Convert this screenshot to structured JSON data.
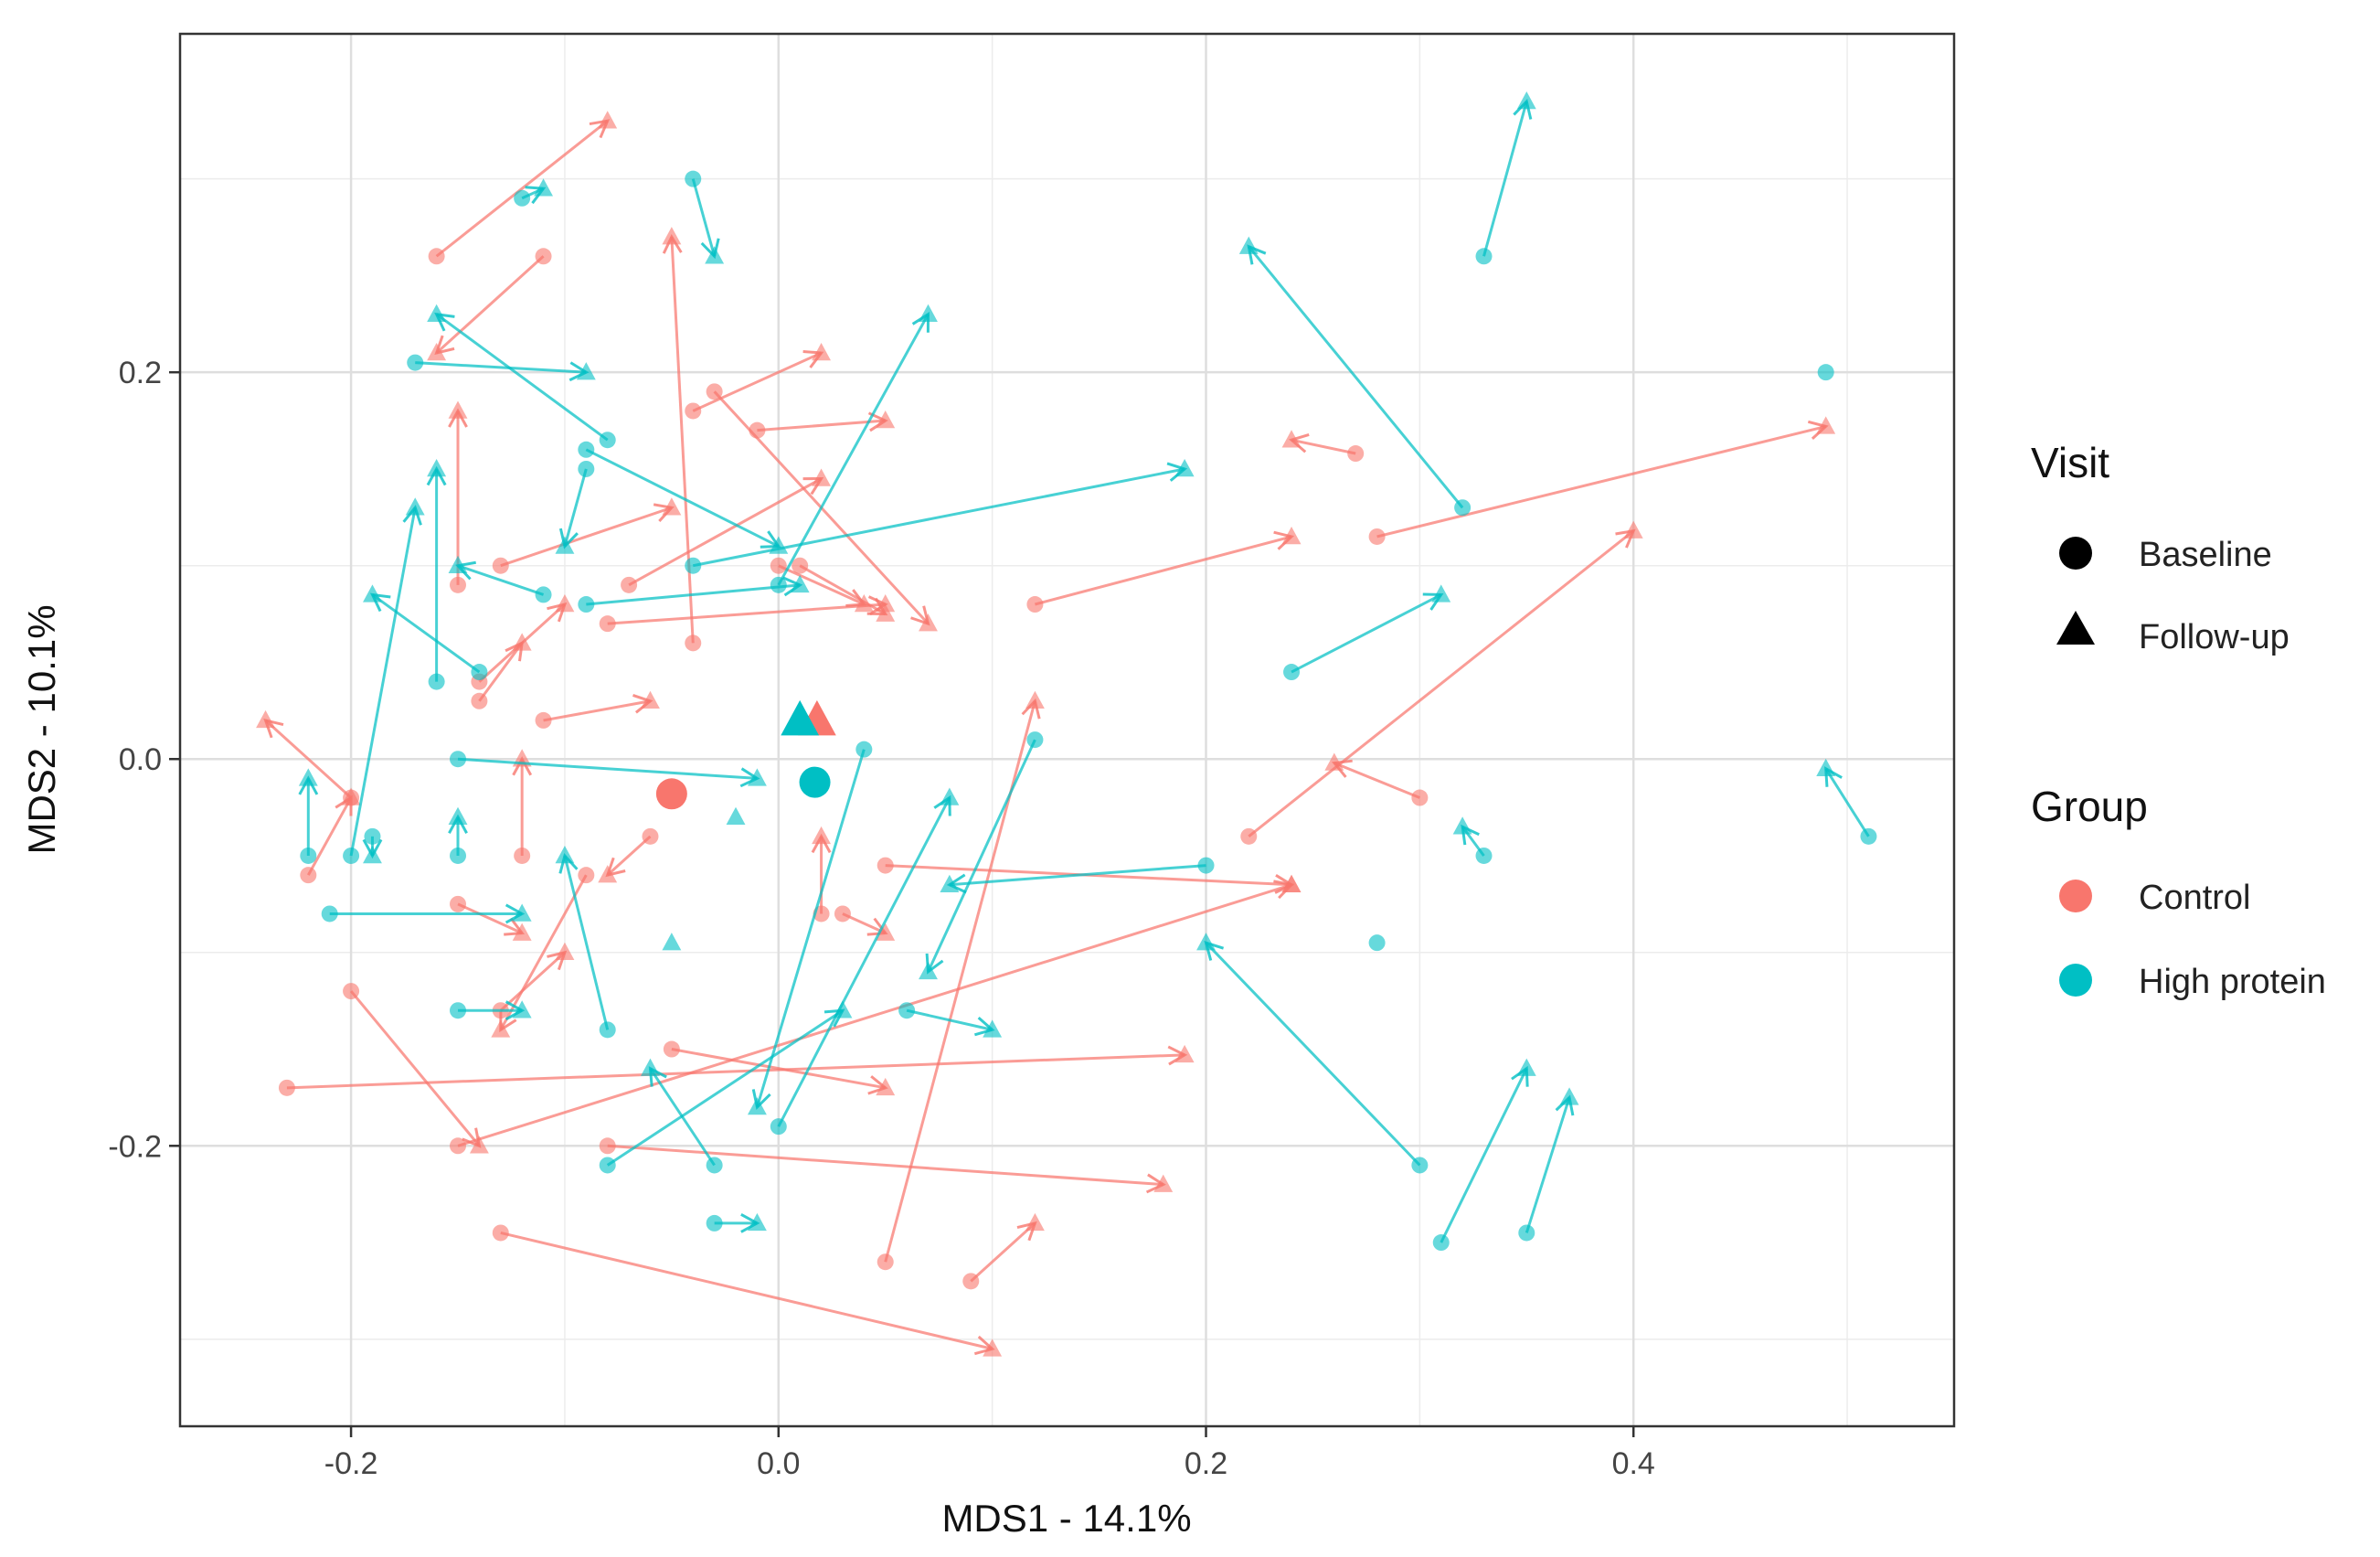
{
  "chart_data": {
    "type": "scatter",
    "xlabel": "MDS1 - 14.1%",
    "ylabel": "MDS2 - 10.1%",
    "xlim": [
      -0.28,
      0.55
    ],
    "ylim": [
      -0.345,
      0.375
    ],
    "x_ticks": [
      -0.2,
      0.0,
      0.2,
      0.4
    ],
    "x_tick_labels": [
      "-0.2",
      "0.0",
      "0.2",
      "0.4"
    ],
    "y_ticks": [
      -0.2,
      0.0,
      0.2
    ],
    "y_tick_labels": [
      "-0.2",
      "0.0",
      "0.2"
    ],
    "grid": true,
    "legend": {
      "placement": "right",
      "visit_title": "Visit",
      "visit_items": [
        {
          "label": "Baseline",
          "shape": "circle"
        },
        {
          "label": "Follow-up",
          "shape": "triangle"
        }
      ],
      "group_title": "Group",
      "group_items": [
        {
          "label": "Control",
          "color": "#F8766D"
        },
        {
          "label": "High protein",
          "color": "#00BFC4"
        }
      ]
    },
    "series": [
      {
        "name": "Control",
        "color": "#F8766D",
        "pairs": [
          [
            -0.16,
            0.26,
            -0.08,
            0.33
          ],
          [
            -0.11,
            0.26,
            -0.16,
            0.21
          ],
          [
            -0.04,
            0.18,
            0.02,
            0.21
          ],
          [
            -0.01,
            0.17,
            0.05,
            0.175
          ],
          [
            -0.03,
            0.19,
            0.07,
            0.07
          ],
          [
            -0.07,
            0.09,
            0.02,
            0.145
          ],
          [
            -0.13,
            0.1,
            -0.05,
            0.13
          ],
          [
            -0.08,
            0.07,
            0.05,
            0.08
          ],
          [
            -0.14,
            0.04,
            -0.1,
            0.08
          ],
          [
            -0.11,
            0.02,
            -0.06,
            0.03
          ],
          [
            -0.15,
            0.09,
            -0.15,
            0.18
          ],
          [
            -0.14,
            0.03,
            -0.12,
            0.06
          ],
          [
            -0.2,
            -0.02,
            -0.24,
            0.02
          ],
          [
            -0.22,
            -0.06,
            -0.2,
            -0.02
          ],
          [
            -0.12,
            -0.05,
            -0.12,
            0.0
          ],
          [
            -0.15,
            -0.075,
            -0.12,
            -0.09
          ],
          [
            -0.13,
            -0.13,
            -0.1,
            -0.1
          ],
          [
            -0.2,
            -0.12,
            -0.14,
            -0.2
          ],
          [
            -0.23,
            -0.17,
            0.19,
            -0.153
          ],
          [
            -0.05,
            -0.15,
            0.05,
            -0.17
          ],
          [
            -0.13,
            -0.245,
            0.1,
            -0.305
          ],
          [
            -0.15,
            -0.2,
            0.24,
            -0.065
          ],
          [
            -0.08,
            -0.2,
            0.18,
            -0.22
          ],
          [
            0.12,
            0.08,
            0.24,
            0.115
          ],
          [
            0.28,
            0.115,
            0.49,
            0.172
          ],
          [
            0.22,
            -0.04,
            0.4,
            0.118
          ],
          [
            0.27,
            0.158,
            0.24,
            0.165
          ],
          [
            0.3,
            -0.02,
            0.26,
            -0.002
          ],
          [
            0.05,
            -0.055,
            0.24,
            -0.065
          ],
          [
            0.05,
            -0.26,
            0.12,
            0.03
          ],
          [
            0.09,
            -0.27,
            0.12,
            -0.24
          ],
          [
            0.01,
            0.1,
            0.05,
            0.075
          ],
          [
            -0.04,
            0.06,
            -0.05,
            0.27
          ],
          [
            0.0,
            0.1,
            0.04,
            0.08
          ],
          [
            0.03,
            -0.08,
            0.05,
            -0.09
          ],
          [
            -0.09,
            -0.06,
            -0.13,
            -0.14
          ],
          [
            -0.06,
            -0.04,
            -0.08,
            -0.06
          ],
          [
            0.02,
            -0.08,
            0.02,
            -0.04
          ]
        ]
      },
      {
        "name": "High protein",
        "color": "#00BFC4",
        "pairs": [
          [
            -0.12,
            0.29,
            -0.11,
            0.295
          ],
          [
            -0.04,
            0.3,
            -0.03,
            0.26
          ],
          [
            0.33,
            0.26,
            0.35,
            0.34
          ],
          [
            0.32,
            0.13,
            0.22,
            0.265
          ],
          [
            -0.08,
            0.165,
            -0.16,
            0.23
          ],
          [
            -0.17,
            0.205,
            -0.09,
            0.2
          ],
          [
            0.0,
            0.09,
            0.07,
            0.23
          ],
          [
            -0.04,
            0.1,
            0.19,
            0.15
          ],
          [
            -0.09,
            0.16,
            0.0,
            0.11
          ],
          [
            -0.16,
            0.04,
            -0.16,
            0.15
          ],
          [
            -0.2,
            -0.05,
            -0.17,
            0.13
          ],
          [
            -0.14,
            0.045,
            -0.19,
            0.085
          ],
          [
            -0.11,
            0.085,
            -0.15,
            0.1
          ],
          [
            -0.09,
            0.08,
            0.01,
            0.09
          ],
          [
            -0.15,
            0.0,
            -0.01,
            -0.01
          ],
          [
            -0.21,
            -0.08,
            -0.12,
            -0.08
          ],
          [
            -0.19,
            -0.04,
            -0.19,
            -0.05
          ],
          [
            -0.22,
            -0.05,
            -0.22,
            -0.01
          ],
          [
            -0.15,
            -0.05,
            -0.15,
            -0.03
          ],
          [
            -0.09,
            0.15,
            -0.1,
            0.11
          ],
          [
            0.24,
            0.045,
            0.31,
            0.085
          ],
          [
            0.3,
            -0.21,
            0.2,
            -0.095
          ],
          [
            0.33,
            -0.05,
            0.32,
            -0.035
          ],
          [
            0.31,
            -0.25,
            0.35,
            -0.16
          ],
          [
            0.35,
            -0.245,
            0.37,
            -0.175
          ],
          [
            0.51,
            -0.04,
            0.49,
            -0.005
          ],
          [
            0.2,
            -0.055,
            0.08,
            -0.065
          ],
          [
            0.12,
            0.01,
            0.07,
            -0.11
          ],
          [
            0.04,
            0.005,
            -0.01,
            -0.18
          ],
          [
            0.06,
            -0.13,
            0.1,
            -0.14
          ],
          [
            -0.08,
            -0.21,
            0.03,
            -0.13
          ],
          [
            0.0,
            -0.19,
            0.08,
            -0.02
          ],
          [
            -0.03,
            -0.21,
            -0.06,
            -0.16
          ],
          [
            -0.08,
            -0.14,
            -0.1,
            -0.05
          ],
          [
            -0.03,
            -0.24,
            -0.01,
            -0.24
          ],
          [
            -0.15,
            -0.13,
            -0.12,
            -0.13
          ]
        ]
      }
    ],
    "centroids": [
      {
        "group": "Control",
        "visit": "Baseline",
        "x": -0.05,
        "y": -0.018
      },
      {
        "group": "Control",
        "visit": "Follow-up",
        "x": 0.018,
        "y": 0.02
      },
      {
        "group": "High protein",
        "visit": "Baseline",
        "x": 0.017,
        "y": -0.012
      },
      {
        "group": "High protein",
        "visit": "Follow-up",
        "x": 0.01,
        "y": 0.02
      }
    ],
    "unpaired_points": [
      {
        "group": "High protein",
        "visit": "Baseline",
        "x": 0.49,
        "y": 0.2
      },
      {
        "group": "High protein",
        "visit": "Baseline",
        "x": 0.28,
        "y": -0.095
      },
      {
        "group": "High protein",
        "visit": "Follow-up",
        "x": -0.02,
        "y": -0.03
      },
      {
        "group": "High protein",
        "visit": "Follow-up",
        "x": -0.05,
        "y": -0.095
      }
    ]
  }
}
